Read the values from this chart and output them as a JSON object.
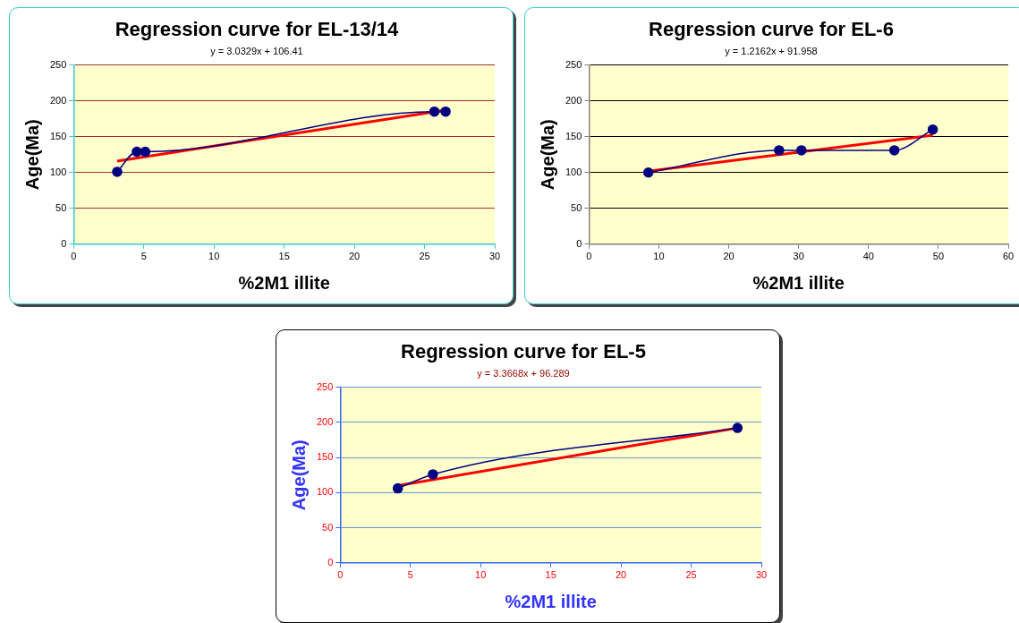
{
  "chart_data": [
    {
      "type": "line",
      "title": "Regression curve for EL-13/14",
      "subtitle": "y = 3.0329x + 106.41",
      "xlabel": "%2M1 illite",
      "ylabel": "Age(Ma)",
      "xlim": [
        0,
        30
      ],
      "xticks": [
        0,
        5,
        10,
        15,
        20,
        25,
        30
      ],
      "ylim": [
        0,
        250
      ],
      "yticks": [
        0,
        50,
        100,
        150,
        200,
        250
      ],
      "grid": "y",
      "series": [
        {
          "color": "#000080",
          "marker": "circle",
          "x": [
            3.1,
            4.5,
            5.1,
            25.7,
            26.5
          ],
          "values": [
            101,
            129,
            129,
            185,
            185
          ]
        },
        {
          "color": "#ff0000",
          "marker": "none",
          "x": [
            3.1,
            26.5
          ],
          "values": [
            116,
            187
          ]
        }
      ]
    },
    {
      "type": "line",
      "title": "Regression curve for EL-6",
      "subtitle": "y = 1.2162x + 91.958",
      "xlabel": "%2M1 illite",
      "ylabel": "Age(Ma)",
      "xlim": [
        0,
        60
      ],
      "xticks": [
        0,
        10,
        20,
        30,
        40,
        50,
        60
      ],
      "ylim": [
        0,
        250
      ],
      "yticks": [
        0,
        50,
        100,
        150,
        200,
        250
      ],
      "grid": "y",
      "series": [
        {
          "color": "#000080",
          "marker": "circle",
          "x": [
            8.5,
            27.2,
            30.4,
            43.7,
            49.2
          ],
          "values": [
            100,
            131,
            131,
            131,
            160
          ]
        },
        {
          "color": "#ff0000",
          "marker": "none",
          "x": [
            8.5,
            49.2
          ],
          "values": [
            102,
            152
          ]
        }
      ]
    },
    {
      "type": "line",
      "title": "Regression curve for EL-5",
      "subtitle": "y = 3.3668x + 96.289",
      "xlabel": "%2M1 illite",
      "ylabel": "Age(Ma)",
      "xlim": [
        0,
        30
      ],
      "xticks": [
        0,
        5,
        10,
        15,
        20,
        25,
        30
      ],
      "ylim": [
        0,
        250
      ],
      "yticks": [
        0,
        50,
        100,
        150,
        200,
        250
      ],
      "grid": "y",
      "series": [
        {
          "color": "#000080",
          "marker": "circle",
          "x": [
            4.1,
            6.6,
            28.3
          ],
          "values": [
            106,
            126,
            192
          ]
        },
        {
          "color": "#ff0000",
          "marker": "none",
          "x": [
            4.1,
            28.3
          ],
          "values": [
            110,
            192
          ]
        }
      ]
    }
  ]
}
